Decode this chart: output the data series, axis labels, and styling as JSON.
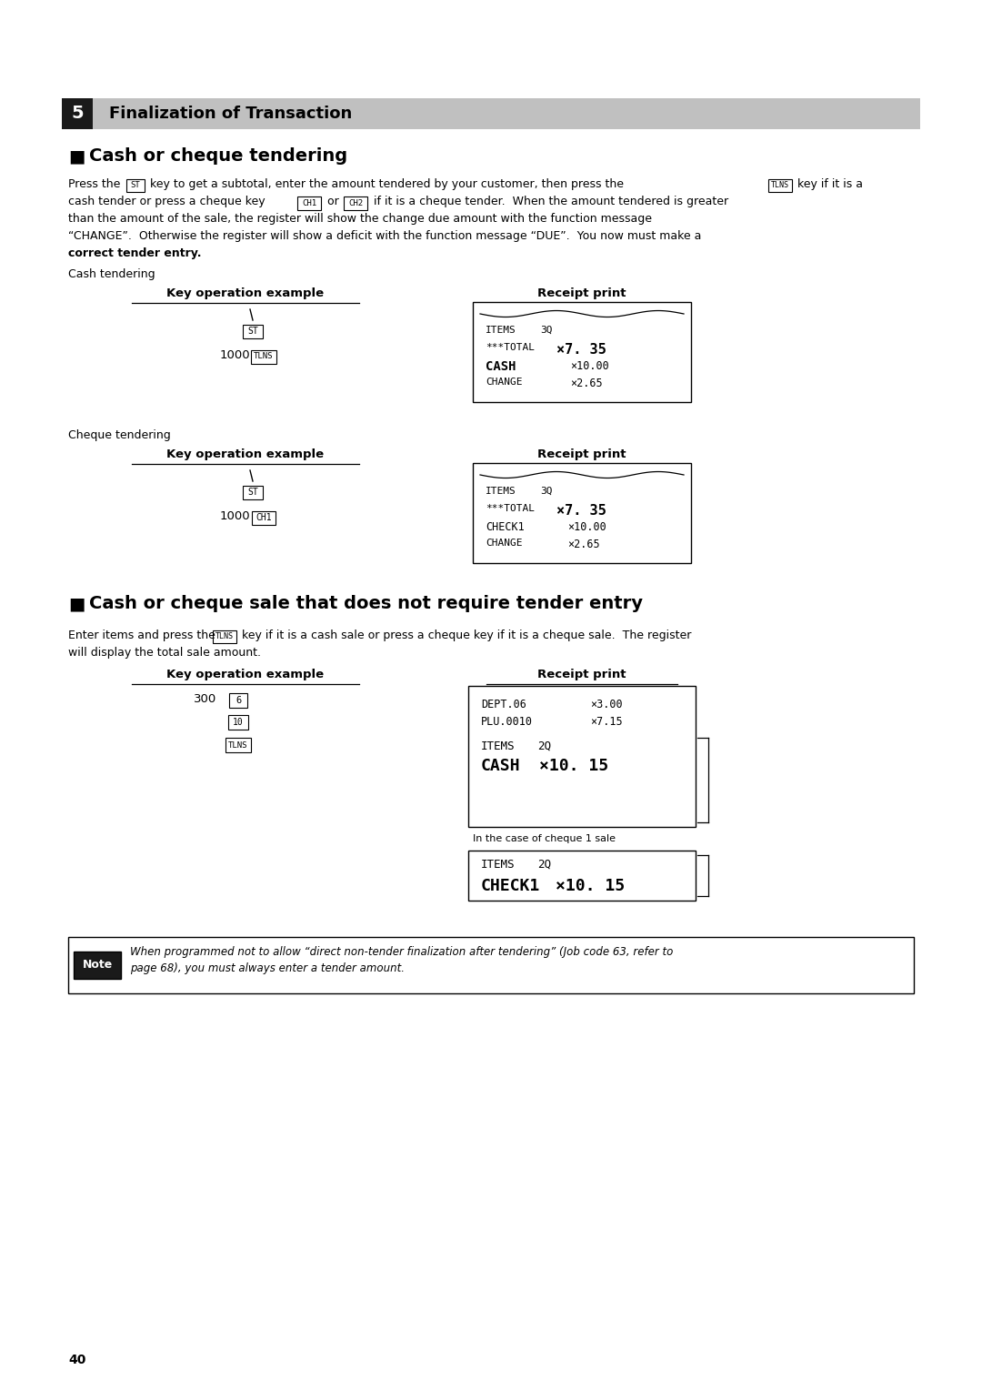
{
  "page_bg": "#ffffff",
  "section_header_bg": "#c0c0c0",
  "section_num": "5",
  "section_title": "Finalization of Transaction",
  "subsection1_title": "Cash or cheque tendering",
  "subsection2_title": "Cash or cheque sale that does not require tender entry",
  "cash_tendering_label": "Cash tendering",
  "cheque_tendering_label": "Cheque tendering",
  "key_op_label": "Key operation example",
  "receipt_print_label": "Receipt print",
  "note_label": "Note",
  "note_line1": "When programmed not to allow “direct non-tender finalization after tendering” (Job code 63, refer to",
  "note_line2": "page 68), you must always enter a tender amount.",
  "page_number": "40",
  "body1_lines": [
    "Press the  ST  key to get a subtotal, enter the amount tendered by your customer, then press the  TLNS  key if it is a",
    "cash tender or press a cheque key  (CH1)  or  (CH2)  if it is a cheque tender.  When the amount tendered is greater",
    "than the amount of the sale, the register will show the change due amount with the function message",
    "“CHANGE”.  Otherwise the register will show a deficit with the function message “DUE”.  You now must make a",
    "correct tender entry."
  ],
  "body2_lines": [
    "Enter items and press the  TLNS  key if it is a cash sale or press a cheque key if it is a cheque sale.  The register",
    "will display the total sale amount."
  ]
}
